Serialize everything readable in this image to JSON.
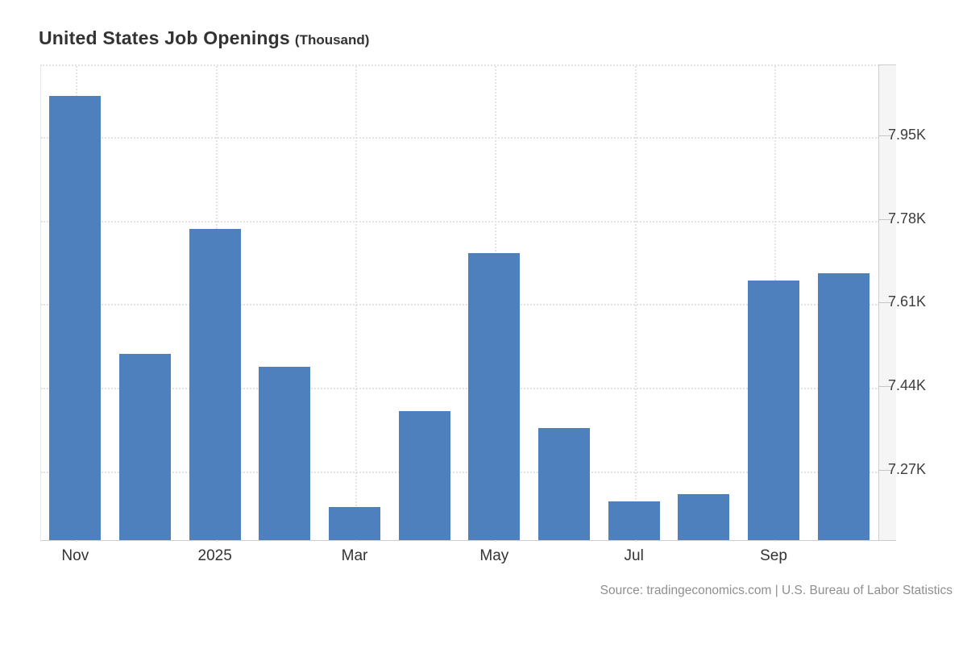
{
  "header": {
    "title": "United States Job Openings",
    "subtitle": "(Thousand)"
  },
  "footer": {
    "source": "Source: tradingeconomics.com | U.S. Bureau of Labor Statistics"
  },
  "chart_data": {
    "type": "bar",
    "title": "United States Job Openings",
    "unit_label": "(Thousand)",
    "categories": [
      "Nov",
      "",
      "2025",
      "",
      "Mar",
      "",
      "May",
      "",
      "Jul",
      "",
      "Sep",
      ""
    ],
    "values": [
      8030,
      7505,
      7760,
      7480,
      7195,
      7390,
      7710,
      7355,
      7205,
      7220,
      7655,
      7670
    ],
    "y_ticks": [
      {
        "value": 7950,
        "label": "7.95K"
      },
      {
        "value": 7780,
        "label": "7.78K"
      },
      {
        "value": 7610,
        "label": "7.61K"
      },
      {
        "value": 7440,
        "label": "7.44K"
      },
      {
        "value": 7270,
        "label": "7.27K"
      }
    ],
    "ylim": [
      7127,
      8094
    ],
    "xlabel": "",
    "ylabel": "",
    "bar_color": "#4d80bd",
    "grid": "dotted",
    "legend_position": "none",
    "y_axis_side": "right",
    "source": "Source: tradingeconomics.com | U.S. Bureau of Labor Statistics"
  }
}
